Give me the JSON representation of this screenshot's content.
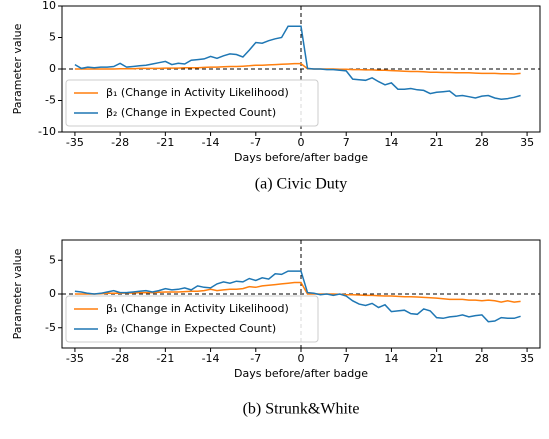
{
  "chart_data": [
    {
      "type": "line",
      "caption": "(a) Civic Duty",
      "xlabel": "Days before/after badge",
      "ylabel": "Parameter value",
      "x": [
        -35,
        -34,
        -33,
        -32,
        -31,
        -30,
        -29,
        -28,
        -27,
        -26,
        -25,
        -24,
        -23,
        -22,
        -21,
        -20,
        -19,
        -18,
        -17,
        -16,
        -15,
        -14,
        -13,
        -12,
        -11,
        -10,
        -9,
        -8,
        -7,
        -6,
        -5,
        -4,
        -3,
        -2,
        -1,
        0,
        1,
        2,
        3,
        4,
        5,
        6,
        7,
        8,
        9,
        10,
        11,
        12,
        13,
        14,
        15,
        16,
        17,
        18,
        19,
        20,
        21,
        22,
        23,
        24,
        25,
        26,
        27,
        28,
        29,
        30,
        31,
        32,
        33,
        34
      ],
      "series": [
        {
          "name": "β₁ (Change in Activity Likelihood)",
          "color": "#ff7f0e",
          "values": [
            0,
            0,
            0,
            0,
            0,
            0,
            0,
            0.05,
            0.05,
            0.05,
            0.1,
            0.1,
            0.1,
            0.1,
            0.15,
            0.15,
            0.15,
            0.2,
            0.2,
            0.2,
            0.25,
            0.3,
            0.3,
            0.35,
            0.4,
            0.4,
            0.45,
            0.5,
            0.6,
            0.6,
            0.65,
            0.7,
            0.75,
            0.8,
            0.85,
            0.85,
            0.05,
            0,
            0,
            0,
            0,
            -0.05,
            -0.05,
            -0.1,
            -0.1,
            -0.15,
            -0.15,
            -0.2,
            -0.2,
            -0.25,
            -0.3,
            -0.35,
            -0.4,
            -0.4,
            -0.45,
            -0.5,
            -0.5,
            -0.55,
            -0.55,
            -0.6,
            -0.6,
            -0.6,
            -0.65,
            -0.7,
            -0.7,
            -0.7,
            -0.75,
            -0.75,
            -0.8,
            -0.7
          ]
        },
        {
          "name": "β₂ (Change in Expected Count)",
          "color": "#1f77b4",
          "values": [
            0.7,
            0.1,
            0.3,
            0.2,
            0.3,
            0.3,
            0.4,
            0.9,
            0.3,
            0.4,
            0.5,
            0.6,
            0.8,
            1.0,
            1.2,
            0.7,
            0.9,
            0.8,
            1.4,
            1.5,
            1.6,
            2.0,
            1.7,
            2.1,
            2.4,
            2.3,
            1.9,
            3.0,
            4.2,
            4.1,
            4.5,
            4.8,
            5.0,
            6.8,
            6.8,
            6.8,
            0.1,
            0,
            0,
            -0.1,
            -0.1,
            -0.2,
            -0.3,
            -1.6,
            -1.7,
            -1.8,
            -1.4,
            -2.0,
            -2.5,
            -2.2,
            -3.2,
            -3.2,
            -3.1,
            -3.3,
            -3.4,
            -3.9,
            -3.7,
            -3.6,
            -3.5,
            -4.3,
            -4.2,
            -4.4,
            -4.6,
            -4.3,
            -4.2,
            -4.6,
            -4.8,
            -4.7,
            -4.5,
            -4.2
          ]
        }
      ],
      "xlim": [
        -37,
        37
      ],
      "xticks": [
        -35,
        -28,
        -21,
        -14,
        -7,
        0,
        7,
        14,
        21,
        28,
        35
      ],
      "ylim": [
        -10,
        10
      ],
      "yticks": [
        -10,
        -5,
        0,
        5,
        10
      ],
      "reference_lines": {
        "x": 0,
        "y": 0
      },
      "legend": "lower left"
    },
    {
      "type": "line",
      "caption": "(b) Strunk&White",
      "xlabel": "Days before/after badge",
      "ylabel": "Parameter value",
      "x": [
        -35,
        -34,
        -33,
        -32,
        -31,
        -30,
        -29,
        -28,
        -27,
        -26,
        -25,
        -24,
        -23,
        -22,
        -21,
        -20,
        -19,
        -18,
        -17,
        -16,
        -15,
        -14,
        -13,
        -12,
        -11,
        -10,
        -9,
        -8,
        -7,
        -6,
        -5,
        -4,
        -3,
        -2,
        -1,
        0,
        1,
        2,
        3,
        4,
        5,
        6,
        7,
        8,
        9,
        10,
        11,
        12,
        13,
        14,
        15,
        16,
        17,
        18,
        19,
        20,
        21,
        22,
        23,
        24,
        25,
        26,
        27,
        28,
        29,
        30,
        31,
        32,
        33,
        34
      ],
      "series": [
        {
          "name": "β₁ (Change in Activity Likelihood)",
          "color": "#ff7f0e",
          "values": [
            0,
            0,
            0,
            0,
            0.05,
            0.1,
            0.1,
            0.1,
            0.15,
            0.15,
            0.2,
            0.2,
            0.2,
            0.25,
            0.3,
            0.3,
            0.3,
            0.35,
            0.4,
            0.4,
            0.5,
            0.7,
            0.5,
            0.6,
            0.7,
            0.7,
            0.8,
            1.1,
            1.0,
            1.2,
            1.3,
            1.4,
            1.5,
            1.6,
            1.7,
            1.7,
            0,
            0,
            0,
            0,
            0,
            -0.05,
            -0.1,
            -0.1,
            -0.15,
            -0.2,
            -0.2,
            -0.25,
            -0.3,
            -0.3,
            -0.35,
            -0.4,
            -0.4,
            -0.45,
            -0.5,
            -0.55,
            -0.6,
            -0.7,
            -0.8,
            -0.8,
            -0.8,
            -0.9,
            -0.9,
            -1.0,
            -0.9,
            -1.0,
            -1.2,
            -1.0,
            -1.2,
            -1.1
          ]
        },
        {
          "name": "β₂ (Change in Expected Count)",
          "color": "#1f77b4",
          "values": [
            0.4,
            0.3,
            0.1,
            0,
            0.1,
            0.3,
            0.5,
            0.2,
            0.2,
            0.3,
            0.4,
            0.5,
            0.3,
            0.5,
            0.8,
            0.6,
            0.7,
            0.9,
            0.6,
            1.2,
            1.0,
            0.9,
            1.5,
            1.8,
            1.6,
            1.9,
            1.8,
            2.3,
            2.0,
            2.4,
            2.2,
            3.0,
            2.9,
            3.4,
            3.4,
            3.4,
            0.2,
            0.1,
            -0.1,
            0,
            -0.2,
            0,
            -0.3,
            -1.0,
            -1.5,
            -1.7,
            -1.4,
            -2.0,
            -1.6,
            -2.6,
            -2.5,
            -2.4,
            -2.9,
            -3.0,
            -2.2,
            -2.5,
            -3.5,
            -3.6,
            -3.4,
            -3.3,
            -3.1,
            -3.4,
            -3.2,
            -3.1,
            -4.1,
            -4.0,
            -3.5,
            -3.6,
            -3.6,
            -3.3
          ]
        }
      ],
      "xlim": [
        -37,
        37
      ],
      "xticks": [
        -35,
        -28,
        -21,
        -14,
        -7,
        0,
        7,
        14,
        21,
        28,
        35
      ],
      "ylim": [
        -8,
        8
      ],
      "yticks": [
        -5,
        0,
        5
      ],
      "reference_lines": {
        "x": 0,
        "y": 0
      },
      "legend": "lower left"
    }
  ]
}
